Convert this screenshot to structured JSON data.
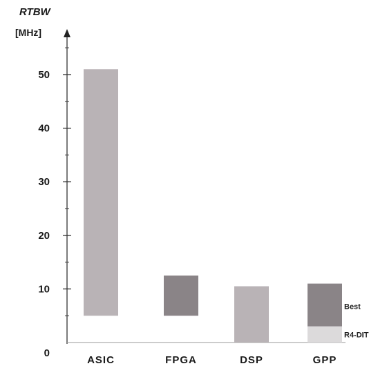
{
  "chart_data": {
    "type": "bar",
    "ylabel": "RTBW",
    "yunit": "[MHz]",
    "ylim": [
      0,
      55
    ],
    "yticks": [
      0,
      10,
      20,
      30,
      40,
      50
    ],
    "categories": [
      "ASIC",
      "FPGA",
      "DSP",
      "GPP"
    ],
    "bars": [
      {
        "category": "ASIC",
        "low": 5,
        "high": 51,
        "color": "#b9b3b6"
      },
      {
        "category": "FPGA",
        "low": 5,
        "high": 12.5,
        "color": "#8a8487"
      },
      {
        "category": "DSP",
        "low": 0,
        "high": 10.5,
        "color": "#b9b3b6"
      },
      {
        "category": "GPP",
        "low": 3,
        "high": 11,
        "color": "#8a8487",
        "label": "Best"
      },
      {
        "category": "GPP",
        "low": 0,
        "high": 3,
        "color": "#dcdadb",
        "label": "R4-DIT"
      }
    ],
    "grid": false,
    "legend": "none"
  }
}
